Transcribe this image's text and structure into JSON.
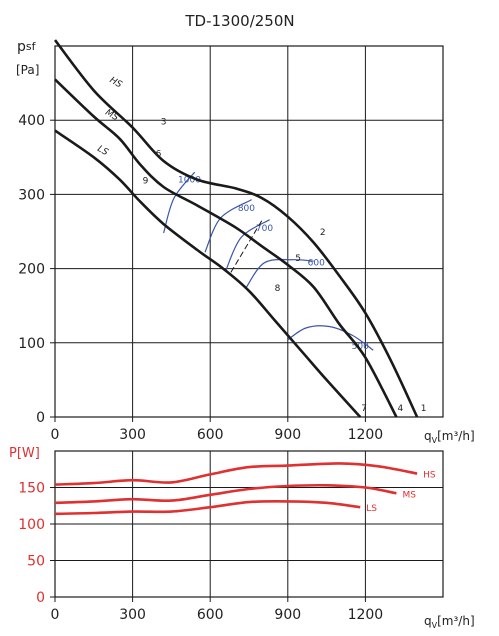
{
  "title": "TD-1300/250N",
  "chart_data": [
    {
      "type": "line",
      "ylabel_main": "p",
      "ylabel_sub": "sf",
      "yunit": "[Pa]",
      "xlabel_main": "q",
      "xlabel_sub": "V",
      "xunit": "[m³/h]",
      "xlim": [
        0,
        1500
      ],
      "ylim": [
        0,
        500
      ],
      "xticks": [
        "0",
        "300",
        "600",
        "900",
        "1200"
      ],
      "yticks": [
        "0",
        "100",
        "200",
        "300",
        "400"
      ],
      "xtick_values": [
        0,
        300,
        600,
        900,
        1200
      ],
      "ytick_values": [
        0,
        100,
        200,
        300,
        400
      ],
      "grid": true,
      "series": [
        {
          "name": "HS",
          "color": "#1a1a1a",
          "points": [
            [
              0,
              508
            ],
            [
              150,
              440
            ],
            [
              300,
              390
            ],
            [
              420,
              345
            ],
            [
              550,
              320
            ],
            [
              700,
              308
            ],
            [
              800,
              295
            ],
            [
              900,
              270
            ],
            [
              1000,
              235
            ],
            [
              1100,
              190
            ],
            [
              1200,
              140
            ],
            [
              1300,
              75
            ],
            [
              1400,
              0
            ]
          ]
        },
        {
          "name": "MS",
          "color": "#1a1a1a",
          "points": [
            [
              0,
              455
            ],
            [
              150,
              405
            ],
            [
              250,
              375
            ],
            [
              330,
              340
            ],
            [
              420,
              310
            ],
            [
              550,
              285
            ],
            [
              700,
              255
            ],
            [
              800,
              230
            ],
            [
              900,
              205
            ],
            [
              1000,
              175
            ],
            [
              1100,
              125
            ],
            [
              1200,
              80
            ],
            [
              1320,
              0
            ]
          ]
        },
        {
          "name": "LS",
          "color": "#1a1a1a",
          "points": [
            [
              0,
              386
            ],
            [
              150,
              350
            ],
            [
              250,
              320
            ],
            [
              330,
              290
            ],
            [
              420,
              260
            ],
            [
              550,
              225
            ],
            [
              650,
              200
            ],
            [
              750,
              170
            ],
            [
              850,
              130
            ],
            [
              950,
              90
            ],
            [
              1050,
              50
            ],
            [
              1180,
              0
            ]
          ]
        }
      ],
      "curve_labels": [
        {
          "text": "HS",
          "x": 230,
          "y": 448
        },
        {
          "text": "MS",
          "x": 215,
          "y": 404
        },
        {
          "text": "LS",
          "x": 180,
          "y": 356
        }
      ],
      "point_labels": [
        {
          "text": "3",
          "x": 420,
          "y": 394
        },
        {
          "text": "6",
          "x": 400,
          "y": 351
        },
        {
          "text": "9",
          "x": 350,
          "y": 315
        },
        {
          "text": "2",
          "x": 1035,
          "y": 245
        },
        {
          "text": "5",
          "x": 940,
          "y": 210
        },
        {
          "text": "8",
          "x": 860,
          "y": 170
        },
        {
          "text": "1",
          "x": 1425,
          "y": 8
        },
        {
          "text": "4",
          "x": 1335,
          "y": 8
        },
        {
          "text": "7",
          "x": 1195,
          "y": 8
        }
      ],
      "isolines": [
        {
          "label": "1000",
          "color": "#3a55a8",
          "points": [
            [
              420,
              248
            ],
            [
              460,
              295
            ],
            [
              540,
              330
            ]
          ],
          "label_x": 520,
          "label_y": 320
        },
        {
          "label": "800",
          "color": "#3a55a8",
          "points": [
            [
              580,
              222
            ],
            [
              640,
              268
            ],
            [
              760,
              293
            ]
          ],
          "label_x": 740,
          "label_y": 282
        },
        {
          "label": "700",
          "color": "#3a55a8",
          "points": [
            [
              660,
              197
            ],
            [
              720,
              242
            ],
            [
              830,
              266
            ]
          ],
          "label_x": 810,
          "label_y": 255
        },
        {
          "label": "600",
          "color": "#3a55a8",
          "points": [
            [
              740,
              175
            ],
            [
              810,
              208
            ],
            [
              920,
              212
            ],
            [
              1000,
              210
            ]
          ],
          "label_x": 1010,
          "label_y": 208
        },
        {
          "label": "500",
          "color": "#3a55a8",
          "points": [
            [
              900,
              104
            ],
            [
              970,
              120
            ],
            [
              1060,
              122
            ],
            [
              1150,
              110
            ],
            [
              1230,
              90
            ]
          ],
          "label_x": 1180,
          "label_y": 96
        }
      ],
      "extra_dashed_line": {
        "points": [
          [
            680,
            195
          ],
          [
            800,
            265
          ]
        ],
        "color": "#1a1a1a"
      }
    },
    {
      "type": "line",
      "ylabel": "P[W]",
      "ylabel_color": "#e03030",
      "xlabel_main": "q",
      "xlabel_sub": "V",
      "xunit": "[m³/h]",
      "xlim": [
        0,
        1500
      ],
      "ylim": [
        0,
        200
      ],
      "xticks": [
        "0",
        "300",
        "600",
        "900",
        "1200"
      ],
      "yticks": [
        "0",
        "50",
        "100",
        "150"
      ],
      "xtick_values": [
        0,
        300,
        600,
        900,
        1200
      ],
      "ytick_values": [
        0,
        50,
        100,
        150
      ],
      "grid": true,
      "series": [
        {
          "name": "HS",
          "color": "#e03030",
          "points": [
            [
              0,
              154
            ],
            [
              150,
              156
            ],
            [
              300,
              160
            ],
            [
              450,
              157
            ],
            [
              600,
              168
            ],
            [
              750,
              178
            ],
            [
              900,
              180
            ],
            [
              1100,
              183
            ],
            [
              1250,
              179
            ],
            [
              1400,
              169
            ]
          ]
        },
        {
          "name": "MS",
          "color": "#e03030",
          "points": [
            [
              0,
              129
            ],
            [
              150,
              131
            ],
            [
              300,
              134
            ],
            [
              450,
              132
            ],
            [
              600,
              140
            ],
            [
              750,
              148
            ],
            [
              900,
              152
            ],
            [
              1050,
              153
            ],
            [
              1200,
              150
            ],
            [
              1320,
              142
            ]
          ]
        },
        {
          "name": "LS",
          "color": "#e03030",
          "points": [
            [
              0,
              114
            ],
            [
              150,
              115
            ],
            [
              300,
              117
            ],
            [
              450,
              117
            ],
            [
              600,
              123
            ],
            [
              750,
              130
            ],
            [
              900,
              131
            ],
            [
              1050,
              129
            ],
            [
              1180,
              123
            ]
          ]
        }
      ]
    }
  ]
}
